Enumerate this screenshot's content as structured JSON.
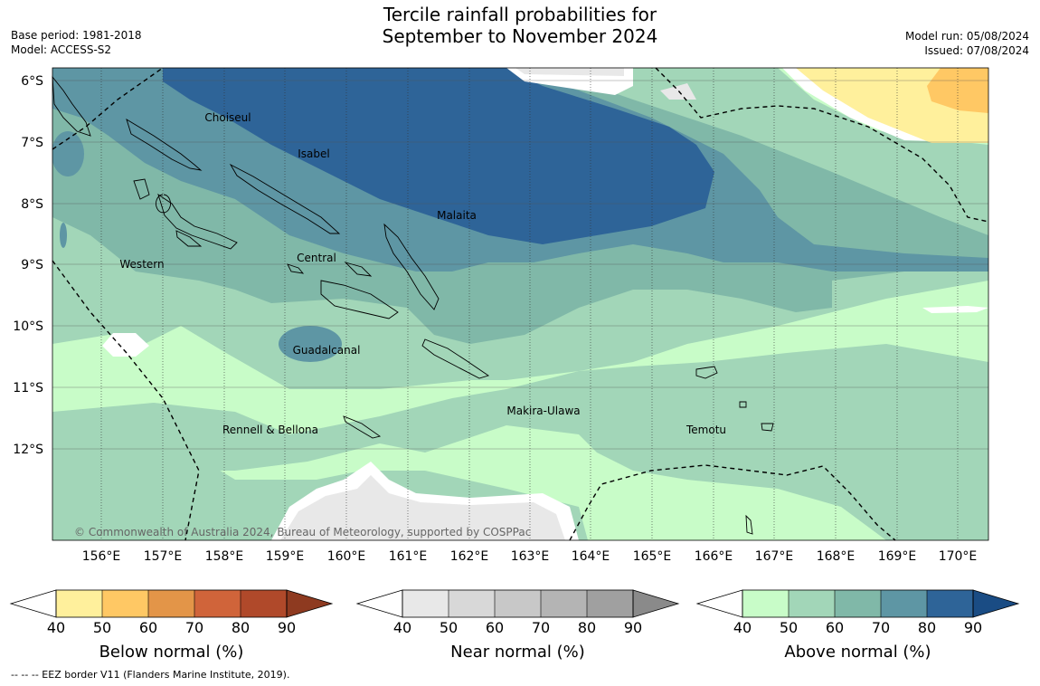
{
  "title": {
    "line1": "Tercile rainfall probabilities for",
    "line2": "September to November 2024"
  },
  "meta_left": {
    "base_period": "Base period: 1981-2018",
    "model": "Model: ACCESS-S2"
  },
  "meta_right": {
    "model_run": "Model run: 05/08/2024",
    "issued": "Issued: 07/08/2024"
  },
  "map": {
    "lat_labels": [
      "6°S",
      "7°S",
      "8°S",
      "9°S",
      "10°S",
      "11°S",
      "12°S"
    ],
    "lon_labels": [
      "156°E",
      "157°E",
      "158°E",
      "159°E",
      "160°E",
      "161°E",
      "162°E",
      "163°E",
      "164°E",
      "165°E",
      "166°E",
      "167°E",
      "168°E",
      "169°E",
      "170°E"
    ],
    "region_labels": [
      "Choiseul",
      "Isabel",
      "Malaita",
      "Central",
      "Western",
      "Guadalcanal",
      "Makira-Ulawa",
      "Rennell & Bellona",
      "Temotu"
    ],
    "copyright": "© Commonwealth of Australia 2024, Bureau of Meteorology, supported by COSPPac"
  },
  "colorbars": [
    {
      "label": "Below normal (%)",
      "ticks": [
        "40",
        "50",
        "60",
        "70",
        "80",
        "90"
      ],
      "colors": [
        "#fff09c",
        "#ffc864",
        "#e39548",
        "#d0643a",
        "#b0492a"
      ],
      "end_color": "#8e3a20"
    },
    {
      "label": "Near normal (%)",
      "ticks": [
        "40",
        "50",
        "60",
        "70",
        "80",
        "90"
      ],
      "colors": [
        "#e8e8e8",
        "#d8d8d8",
        "#c8c8c8",
        "#b4b4b4",
        "#a0a0a0"
      ],
      "end_color": "#8a8a8a"
    },
    {
      "label": "Above normal (%)",
      "ticks": [
        "40",
        "50",
        "60",
        "70",
        "80",
        "90"
      ],
      "colors": [
        "#c8fcc8",
        "#a2d6b8",
        "#80b8a8",
        "#5e96a4",
        "#2e6498"
      ],
      "end_color": "#1a4c84"
    }
  ],
  "footer": "--  --  -- EEZ border V11 (Flanders Marine Institute, 2019)."
}
